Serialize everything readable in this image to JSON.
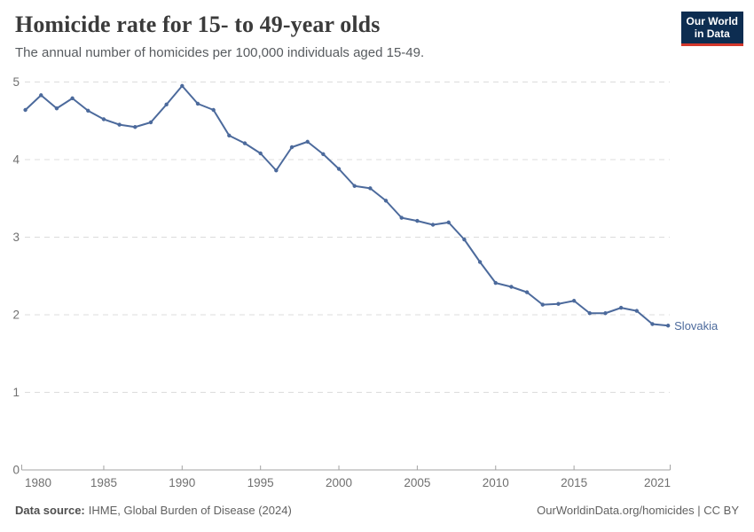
{
  "header": {
    "title": "Homicide rate for 15- to 49-year olds",
    "subtitle": "The annual number of homicides per 100,000 individuals aged 15-49."
  },
  "logo": {
    "line1": "Our World",
    "line2": "in Data",
    "bg_color": "#0d2d51",
    "accent_color": "#d3372c",
    "text_color": "#ffffff"
  },
  "footer": {
    "datasource_label": "Data source:",
    "datasource_value": "IHME, Global Burden of Disease (2024)",
    "credit": "OurWorldinData.org/homicides | CC BY"
  },
  "chart_data": {
    "type": "line",
    "title": "Homicide rate for 15- to 49-year olds",
    "xlabel": "",
    "ylabel": "",
    "xlim": [
      1980,
      2021
    ],
    "ylim": [
      0,
      5
    ],
    "x_ticks": [
      1980,
      1985,
      1990,
      1995,
      2000,
      2005,
      2010,
      2015,
      2021
    ],
    "y_ticks": [
      0,
      1,
      2,
      3,
      4,
      5
    ],
    "grid": "horizontal-dashed",
    "legend": "end-of-line-label",
    "series": [
      {
        "name": "Slovakia",
        "color": "#4c6a9c",
        "years": [
          1980,
          1981,
          1982,
          1983,
          1984,
          1985,
          1986,
          1987,
          1988,
          1989,
          1990,
          1991,
          1992,
          1993,
          1994,
          1995,
          1996,
          1997,
          1998,
          1999,
          2000,
          2001,
          2002,
          2003,
          2004,
          2005,
          2006,
          2007,
          2008,
          2009,
          2010,
          2011,
          2012,
          2013,
          2014,
          2015,
          2016,
          2017,
          2018,
          2019,
          2020,
          2021
        ],
        "values": [
          4.64,
          4.83,
          4.66,
          4.79,
          4.63,
          4.52,
          4.45,
          4.42,
          4.48,
          4.71,
          4.95,
          4.72,
          4.64,
          4.31,
          4.21,
          4.08,
          3.86,
          4.16,
          4.23,
          4.07,
          3.88,
          3.66,
          3.63,
          3.47,
          3.25,
          3.21,
          3.16,
          3.19,
          2.97,
          2.68,
          2.41,
          2.36,
          2.29,
          2.13,
          2.14,
          2.18,
          2.02,
          2.02,
          2.09,
          2.05,
          1.88,
          1.86
        ]
      }
    ]
  }
}
